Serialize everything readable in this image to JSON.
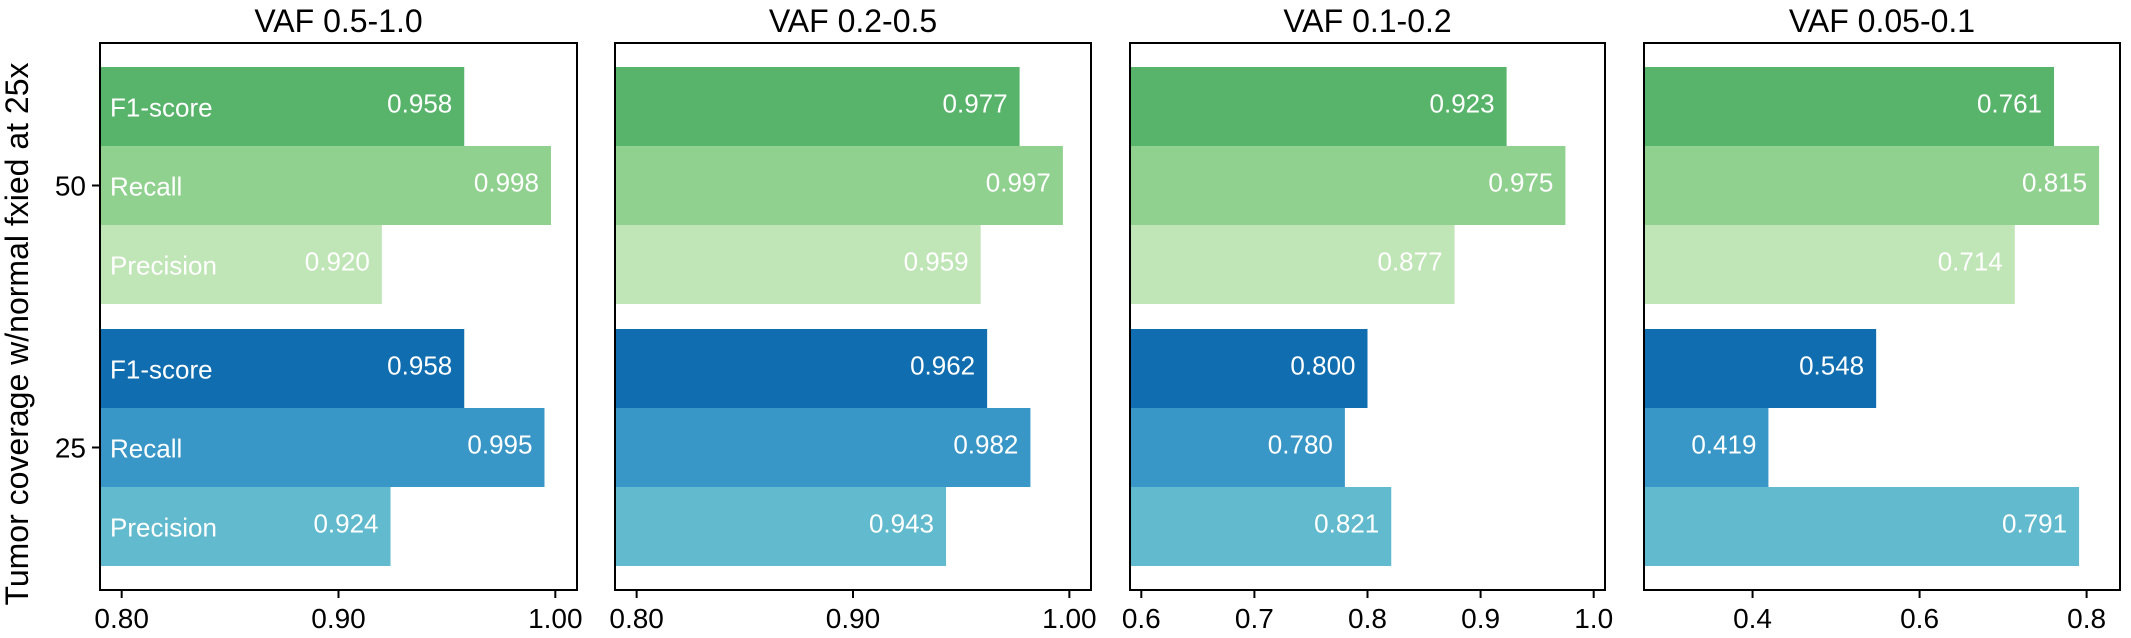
{
  "ylabel": "Tumor coverage w/normal fxied at 25x",
  "colors": {
    "green_f1": "#59b46b",
    "green_recall": "#90d18f",
    "green_precision": "#c0e5b6",
    "blue_f1": "#106daf",
    "blue_recall": "#3897c6",
    "blue_precision": "#61bacd",
    "bar_text": "#ffffff",
    "axis": "#000000"
  },
  "chart_data": [
    {
      "type": "bar",
      "orientation": "horizontal",
      "title": "VAF 0.5-1.0",
      "ylabel": "Tumor coverage w/normal fxied at 25x",
      "groups": [
        "50",
        "25"
      ],
      "metrics": [
        "F1-score",
        "Recall",
        "Precision"
      ],
      "series": [
        {
          "group": "50",
          "values": [
            0.958,
            0.998,
            0.92
          ],
          "labels": [
            "0.958",
            "0.998",
            "0.920"
          ]
        },
        {
          "group": "25",
          "values": [
            0.958,
            0.995,
            0.924
          ],
          "labels": [
            "0.958",
            "0.995",
            "0.924"
          ]
        }
      ],
      "xlim": [
        0.79,
        1.01
      ],
      "xticks": [
        0.8,
        0.9,
        1.0
      ],
      "xtick_labels": [
        "0.80",
        "0.90",
        "1.00"
      ],
      "metric_labels_shown": true
    },
    {
      "type": "bar",
      "orientation": "horizontal",
      "title": "VAF 0.2-0.5",
      "groups": [
        "50",
        "25"
      ],
      "metrics": [
        "F1-score",
        "Recall",
        "Precision"
      ],
      "series": [
        {
          "group": "50",
          "values": [
            0.977,
            0.997,
            0.959
          ],
          "labels": [
            "0.977",
            "0.997",
            "0.959"
          ]
        },
        {
          "group": "25",
          "values": [
            0.962,
            0.982,
            0.943
          ],
          "labels": [
            "0.962",
            "0.982",
            "0.943"
          ]
        }
      ],
      "xlim": [
        0.79,
        1.01
      ],
      "xticks": [
        0.8,
        0.9,
        1.0
      ],
      "xtick_labels": [
        "0.80",
        "0.90",
        "1.00"
      ],
      "metric_labels_shown": false
    },
    {
      "type": "bar",
      "orientation": "horizontal",
      "title": "VAF 0.1-0.2",
      "groups": [
        "50",
        "25"
      ],
      "metrics": [
        "F1-score",
        "Recall",
        "Precision"
      ],
      "series": [
        {
          "group": "50",
          "values": [
            0.923,
            0.975,
            0.877
          ],
          "labels": [
            "0.923",
            "0.975",
            "0.877"
          ]
        },
        {
          "group": "25",
          "values": [
            0.8,
            0.78,
            0.821
          ],
          "labels": [
            "0.800",
            "0.780",
            "0.821"
          ]
        }
      ],
      "xlim": [
        0.59,
        1.01
      ],
      "xticks": [
        0.6,
        0.7,
        0.8,
        0.9,
        1.0
      ],
      "xtick_labels": [
        "0.6",
        "0.7",
        "0.8",
        "0.9",
        "1.0"
      ],
      "metric_labels_shown": false
    },
    {
      "type": "bar",
      "orientation": "horizontal",
      "title": "VAF 0.05-0.1",
      "groups": [
        "50",
        "25"
      ],
      "metrics": [
        "F1-score",
        "Recall",
        "Precision"
      ],
      "series": [
        {
          "group": "50",
          "values": [
            0.761,
            0.815,
            0.714
          ],
          "labels": [
            "0.761",
            "0.815",
            "0.714"
          ]
        },
        {
          "group": "25",
          "values": [
            0.548,
            0.419,
            0.791
          ],
          "labels": [
            "0.548",
            "0.419",
            "0.791"
          ]
        }
      ],
      "xlim": [
        0.27,
        0.84
      ],
      "xticks": [
        0.4,
        0.6,
        0.8
      ],
      "xtick_labels": [
        "0.4",
        "0.6",
        "0.8"
      ],
      "metric_labels_shown": false
    }
  ]
}
